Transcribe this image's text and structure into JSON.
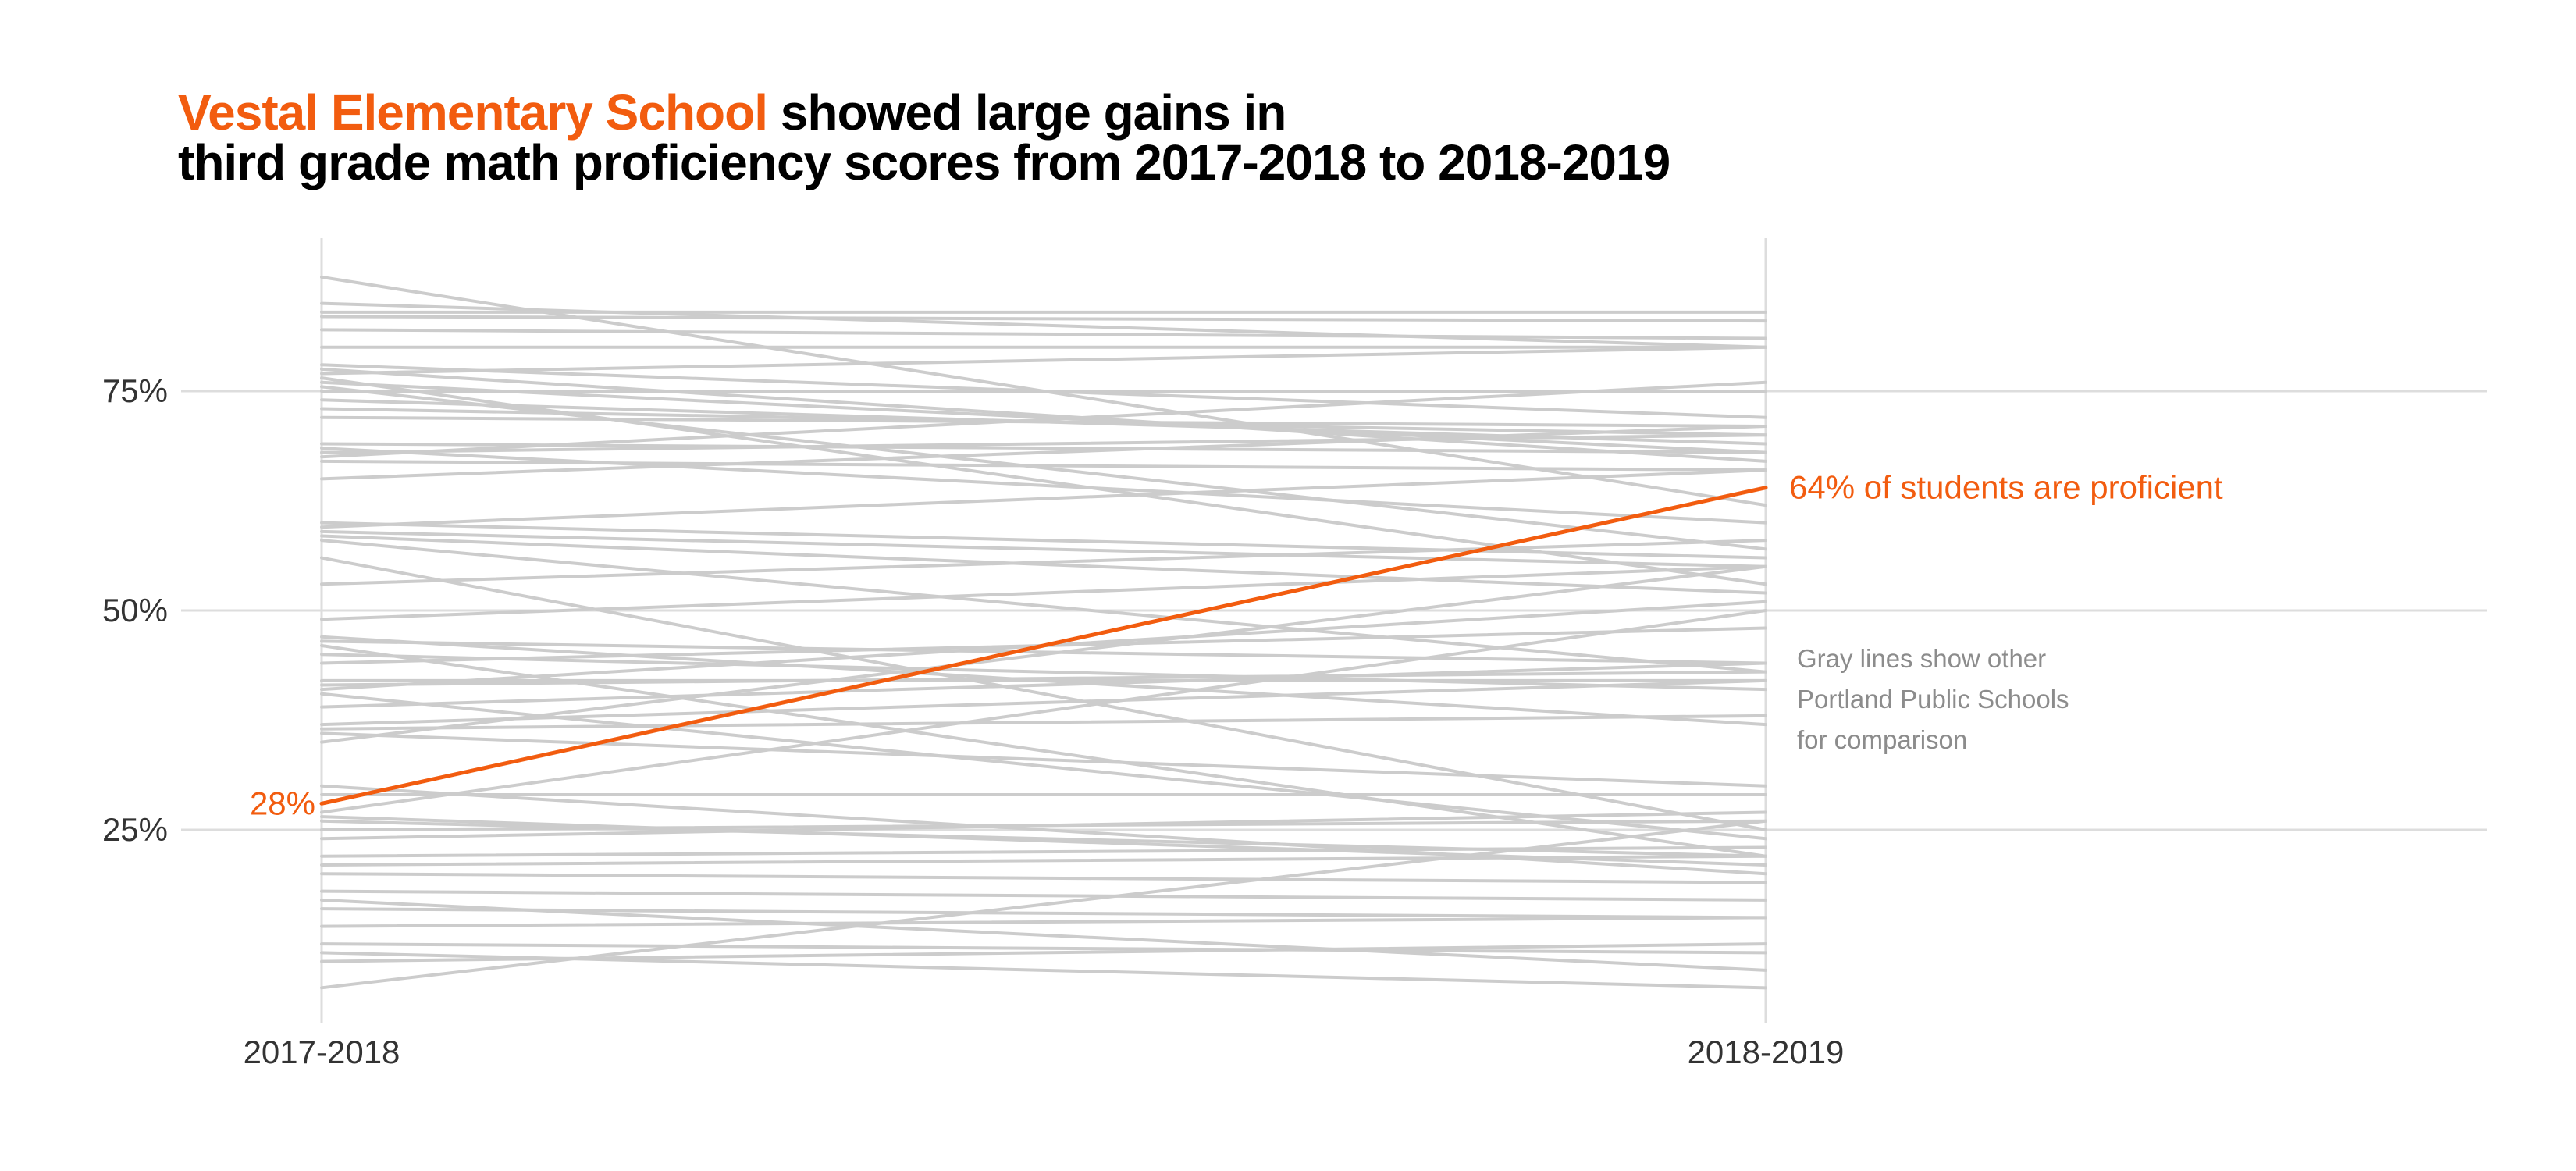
{
  "colors": {
    "highlight": "#f25c0f",
    "others": "#cccccc",
    "grid": "#dddddd",
    "text": "#333333",
    "note": "#8c8c8c"
  },
  "title": {
    "highlight": "Vestal Elementary School",
    "line1_rest": " showed large gains in",
    "line2": "third grade math proficiency scores from 2017-2018 to 2018-2019"
  },
  "chart_data": {
    "type": "line",
    "title": "Vestal Elementary School showed large gains in third grade math proficiency scores from 2017-2018 to 2018-2019",
    "xlabel": "",
    "ylabel": "",
    "categories": [
      "2017-2018",
      "2018-2019"
    ],
    "y_ticks": [
      {
        "value": 25,
        "label": "25%"
      },
      {
        "value": 50,
        "label": "50%"
      },
      {
        "value": 75,
        "label": "75%"
      }
    ],
    "ylim": [
      4,
      91
    ],
    "grid": true,
    "highlight_series": {
      "name": "Vestal Elementary School",
      "values": [
        28,
        64
      ],
      "start_label": "28%",
      "end_label": "64% of students are proficient"
    },
    "comparison_series": [
      [
        88,
        62
      ],
      [
        85,
        80
      ],
      [
        84,
        84
      ],
      [
        83.5,
        83
      ],
      [
        82,
        81
      ],
      [
        80,
        80
      ],
      [
        78,
        72
      ],
      [
        77.5,
        67
      ],
      [
        77,
        80
      ],
      [
        76.5,
        53
      ],
      [
        76,
        68
      ],
      [
        75.5,
        57
      ],
      [
        75,
        75
      ],
      [
        74,
        69
      ],
      [
        73,
        70
      ],
      [
        72,
        71
      ],
      [
        69,
        68
      ],
      [
        68.5,
        60
      ],
      [
        68,
        70
      ],
      [
        67.5,
        76
      ],
      [
        67,
        66
      ],
      [
        65,
        71
      ],
      [
        60,
        56
      ],
      [
        59.5,
        66
      ],
      [
        59,
        55
      ],
      [
        58.5,
        52
      ],
      [
        58,
        43
      ],
      [
        56,
        25
      ],
      [
        53,
        58
      ],
      [
        49,
        55
      ],
      [
        47,
        37
      ],
      [
        46.5,
        44
      ],
      [
        46,
        22
      ],
      [
        45,
        41
      ],
      [
        44,
        48
      ],
      [
        42,
        42
      ],
      [
        41.5,
        43
      ],
      [
        41,
        51
      ],
      [
        40.5,
        24
      ],
      [
        39,
        44
      ],
      [
        37,
        42
      ],
      [
        36.5,
        38
      ],
      [
        36,
        30
      ],
      [
        35,
        55
      ],
      [
        30,
        20
      ],
      [
        29,
        29
      ],
      [
        27,
        50
      ],
      [
        26.5,
        21
      ],
      [
        26,
        22
      ],
      [
        25,
        26
      ],
      [
        24,
        27
      ],
      [
        22,
        23
      ],
      [
        21,
        22
      ],
      [
        20,
        19
      ],
      [
        18,
        17
      ],
      [
        17,
        9
      ],
      [
        16,
        15
      ],
      [
        14,
        15
      ],
      [
        12,
        11
      ],
      [
        11,
        7
      ],
      [
        10,
        12
      ],
      [
        7,
        26
      ]
    ]
  },
  "annotation": {
    "lines": [
      "Gray lines show other",
      "Portland Public Schools",
      "for comparison"
    ]
  }
}
